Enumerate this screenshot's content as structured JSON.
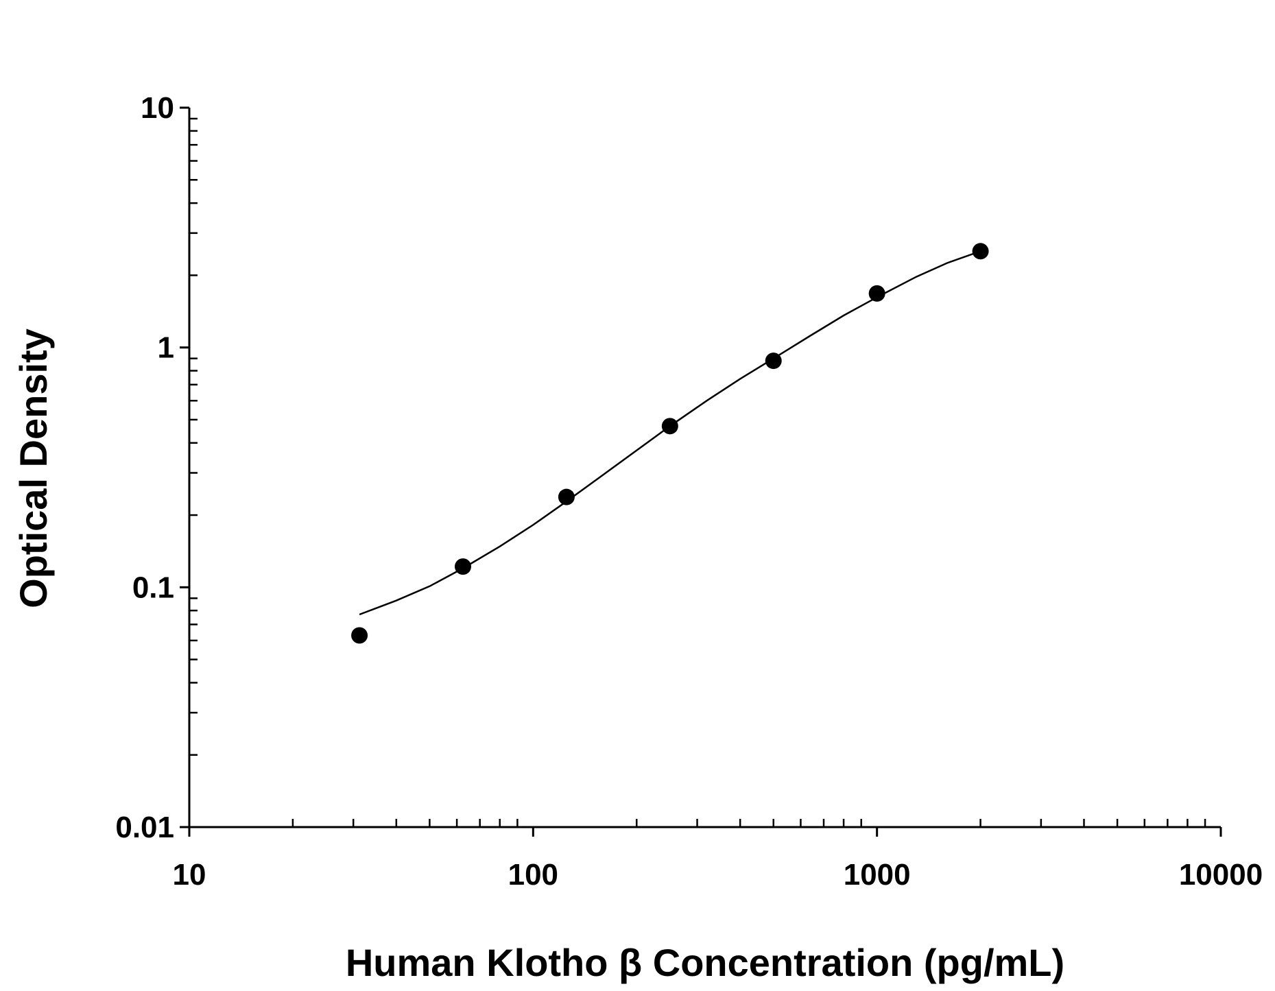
{
  "chart_data": {
    "type": "scatter",
    "xlabel": "Human Klotho β Concentration (pg/mL)",
    "ylabel": "Optical Density",
    "x_scale": "log",
    "y_scale": "log",
    "xlim": [
      10,
      10000
    ],
    "ylim": [
      0.01,
      10
    ],
    "x_ticks": [
      {
        "value": 10,
        "label": "10"
      },
      {
        "value": 100,
        "label": "100"
      },
      {
        "value": 1000,
        "label": "1000"
      },
      {
        "value": 10000,
        "label": "10000"
      }
    ],
    "y_ticks": [
      {
        "value": 0.01,
        "label": "0.01"
      },
      {
        "value": 0.1,
        "label": "0.1"
      },
      {
        "value": 1,
        "label": "1"
      },
      {
        "value": 10,
        "label": "10"
      }
    ],
    "grid": false,
    "series": [
      {
        "points": [
          {
            "x": 31.25,
            "y": 0.063
          },
          {
            "x": 62.5,
            "y": 0.122
          },
          {
            "x": 125,
            "y": 0.238
          },
          {
            "x": 250,
            "y": 0.47
          },
          {
            "x": 500,
            "y": 0.88
          },
          {
            "x": 1000,
            "y": 1.68
          },
          {
            "x": 2000,
            "y": 2.52
          }
        ]
      }
    ],
    "fit_curve": [
      {
        "x": 31.25,
        "y": 0.077
      },
      {
        "x": 40,
        "y": 0.088
      },
      {
        "x": 50,
        "y": 0.101
      },
      {
        "x": 62.5,
        "y": 0.12
      },
      {
        "x": 80,
        "y": 0.148
      },
      {
        "x": 100,
        "y": 0.182
      },
      {
        "x": 125,
        "y": 0.228
      },
      {
        "x": 160,
        "y": 0.295
      },
      {
        "x": 200,
        "y": 0.372
      },
      {
        "x": 250,
        "y": 0.47
      },
      {
        "x": 320,
        "y": 0.6
      },
      {
        "x": 400,
        "y": 0.74
      },
      {
        "x": 500,
        "y": 0.9
      },
      {
        "x": 640,
        "y": 1.12
      },
      {
        "x": 800,
        "y": 1.36
      },
      {
        "x": 1000,
        "y": 1.62
      },
      {
        "x": 1300,
        "y": 1.97
      },
      {
        "x": 1600,
        "y": 2.25
      },
      {
        "x": 2000,
        "y": 2.52
      }
    ],
    "colors": {
      "points": "#000000",
      "line": "#000000",
      "axis": "#000000"
    }
  }
}
